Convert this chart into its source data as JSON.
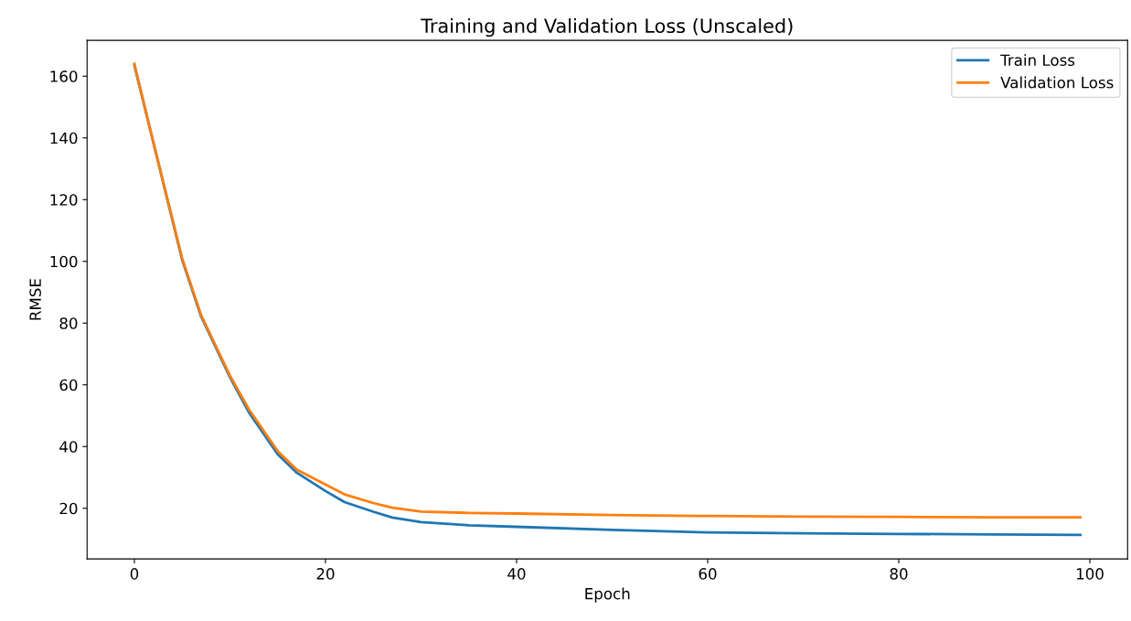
{
  "chart_data": {
    "type": "line",
    "title": "Training and Validation Loss (Unscaled)",
    "xlabel": "Epoch",
    "ylabel": "RMSE",
    "xlim": [
      -4.95,
      103.95
    ],
    "ylim": [
      3.6,
      171.6
    ],
    "xticks": [
      0,
      20,
      40,
      60,
      80,
      100
    ],
    "yticks": [
      20,
      40,
      60,
      80,
      100,
      120,
      140,
      160
    ],
    "legend": "top right",
    "grid": false,
    "series": [
      {
        "name": "Train Loss",
        "color": "#1f77b4",
        "x": [
          0,
          5,
          7,
          10,
          12,
          15,
          17,
          20,
          22,
          25,
          27,
          30,
          35,
          40,
          50,
          60,
          70,
          80,
          90,
          99
        ],
        "values": [
          163.5,
          100.5,
          82,
          62.5,
          51,
          37.5,
          31.5,
          25.6,
          22,
          18.9,
          17,
          15.5,
          14.5,
          14.0,
          13.0,
          12.2,
          11.9,
          11.7,
          11.5,
          11.4
        ]
      },
      {
        "name": "Validation Loss",
        "color": "#ff7f0e",
        "x": [
          0,
          2,
          5,
          7,
          10,
          12,
          15,
          17,
          20,
          22,
          25,
          27,
          30,
          35,
          40,
          50,
          60,
          70,
          80,
          90,
          99
        ],
        "values": [
          164,
          138.5,
          101,
          82.5,
          63,
          52,
          38.5,
          32.5,
          27.7,
          24.5,
          21.7,
          20.2,
          18.9,
          18.5,
          18.3,
          17.8,
          17.5,
          17.3,
          17.2,
          17.1,
          17.1
        ]
      }
    ]
  }
}
